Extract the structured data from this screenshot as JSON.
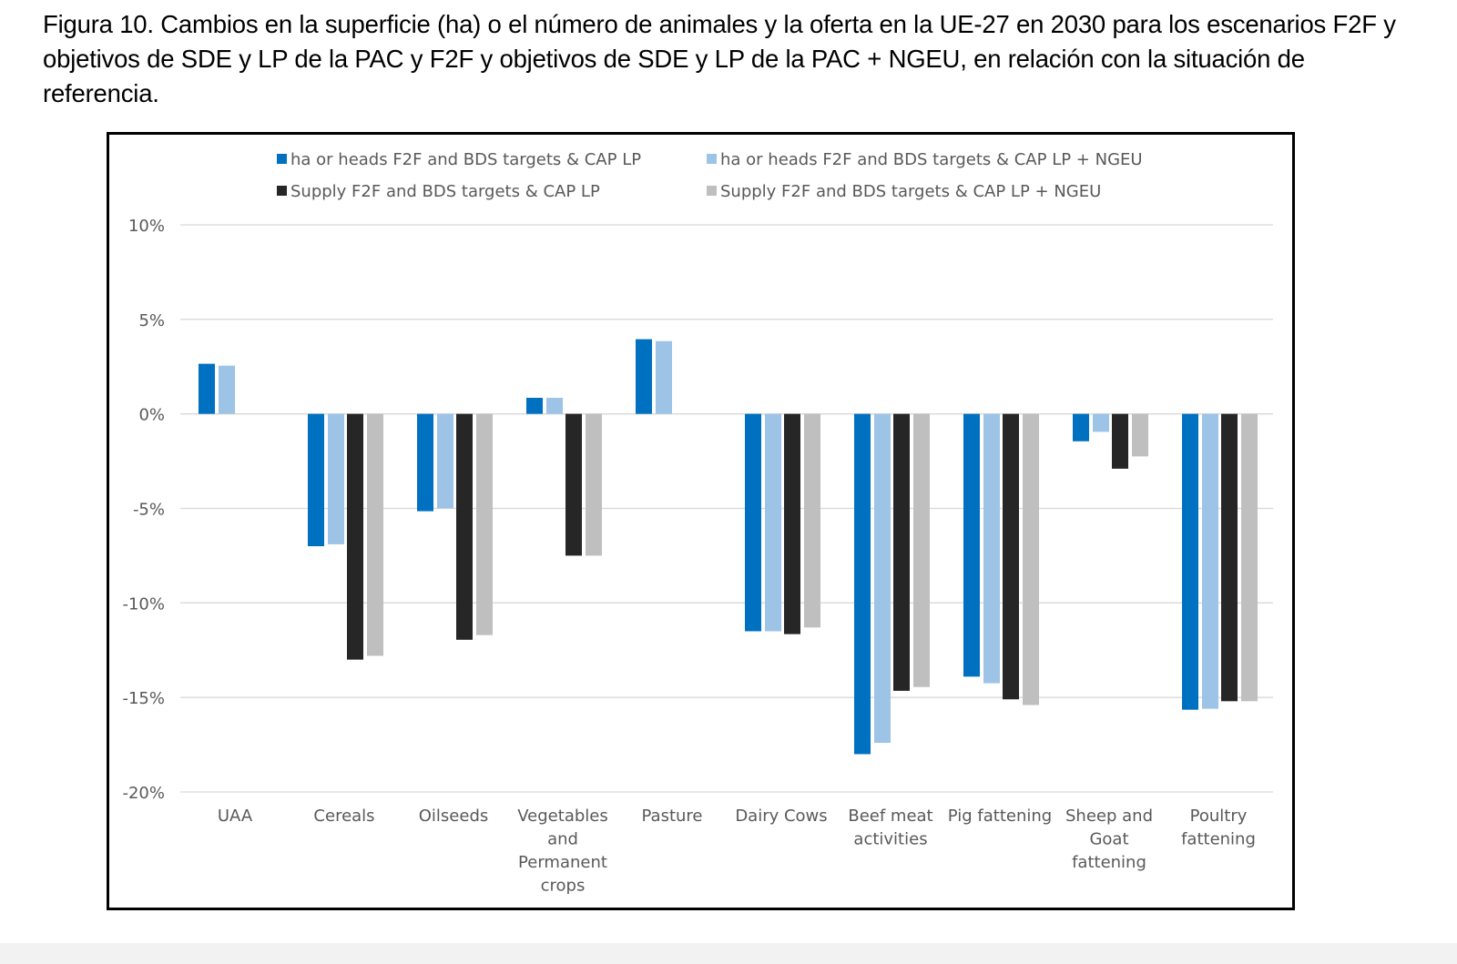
{
  "caption": "Figura 10. Cambios en la superficie (ha) o el número de animales y la oferta en la UE-27 en 2030 para los escenarios F2F y objetivos de SDE y LP de la PAC y F2F y objetivos de SDE y LP de la PAC + NGEU, en relación con la situación de referencia.",
  "chart_data": {
    "type": "bar",
    "title": "",
    "xlabel": "",
    "ylabel": "",
    "ylim": [
      -20,
      10
    ],
    "yticks": [
      10,
      5,
      0,
      -5,
      -10,
      -15,
      -20
    ],
    "ytick_labels": [
      "10%",
      "5%",
      "0%",
      "-5%",
      "-10%",
      "-15%",
      "-20%"
    ],
    "grid": true,
    "legend_position": "top",
    "categories": [
      "UAA",
      "Cereals",
      "Oilseeds",
      "Vegetables and Permanent crops",
      "Pasture",
      "Dairy Cows",
      "Beef meat activities",
      "Pig fattening",
      "Sheep and Goat fattening",
      "Poultry fattening"
    ],
    "category_lines": [
      [
        "UAA"
      ],
      [
        "Cereals"
      ],
      [
        "Oilseeds"
      ],
      [
        "Vegetables",
        "and",
        "Permanent",
        "crops"
      ],
      [
        "Pasture"
      ],
      [
        "Dairy Cows"
      ],
      [
        "Beef meat",
        "activities"
      ],
      [
        "Pig fattening"
      ],
      [
        "Sheep and",
        "Goat",
        "fattening"
      ],
      [
        "Poultry",
        "fattening"
      ]
    ],
    "series": [
      {
        "name": "ha or heads  F2F and BDS targets & CAP LP",
        "color": "#0070c0",
        "values": [
          2.65,
          -7.0,
          -5.15,
          0.85,
          3.95,
          -11.5,
          -18.0,
          -13.9,
          -1.45,
          -15.65
        ]
      },
      {
        "name": "ha or heads F2F and BDS targets & CAP LP + NGEU",
        "color": "#9dc3e6",
        "values": [
          2.55,
          -6.9,
          -5.0,
          0.85,
          3.85,
          -11.5,
          -17.4,
          -14.25,
          -0.95,
          -15.6
        ]
      },
      {
        "name": "Supply F2F and BDS targets & CAP LP",
        "color": "#262626",
        "values": [
          null,
          -13.0,
          -11.95,
          -7.5,
          null,
          -11.65,
          -14.65,
          -15.1,
          -2.9,
          -15.2
        ]
      },
      {
        "name": "Supply F2F and BDS targets & CAP LP + NGEU",
        "color": "#bfbfbf",
        "values": [
          null,
          -12.8,
          -11.7,
          -7.5,
          null,
          -11.3,
          -14.45,
          -15.4,
          -2.25,
          -15.2
        ]
      }
    ]
  }
}
